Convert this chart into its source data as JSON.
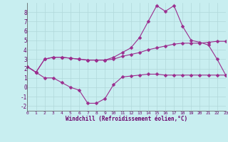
{
  "xlabel": "Windchill (Refroidissement éolien,°C)",
  "background_color": "#c8eef0",
  "grid_color": "#b0d8da",
  "line_color": "#9b2d8e",
  "x_min": 0,
  "x_max": 23,
  "y_min": -2.5,
  "y_max": 9.0,
  "yticks": [
    -2,
    -1,
    0,
    1,
    2,
    3,
    4,
    5,
    6,
    7,
    8
  ],
  "xticks": [
    0,
    1,
    2,
    3,
    4,
    5,
    6,
    7,
    8,
    9,
    10,
    11,
    12,
    13,
    14,
    15,
    16,
    17,
    18,
    19,
    20,
    21,
    22,
    23
  ],
  "curve1_x": [
    0,
    1,
    2,
    3,
    4,
    5,
    6,
    7,
    8,
    9,
    10,
    11,
    12,
    13,
    14,
    15,
    16,
    17,
    18,
    19,
    20,
    21,
    22,
    23
  ],
  "curve1_y": [
    2.2,
    1.6,
    1.0,
    1.0,
    0.5,
    0.0,
    -0.3,
    -1.7,
    -1.7,
    -1.2,
    0.3,
    1.1,
    1.2,
    1.3,
    1.4,
    1.4,
    1.3,
    1.3,
    1.3,
    1.3,
    1.3,
    1.3,
    1.3,
    1.3
  ],
  "curve2_x": [
    0,
    1,
    2,
    3,
    4,
    5,
    6,
    7,
    8,
    9,
    10,
    11,
    12,
    13,
    14,
    15,
    16,
    17,
    18,
    19,
    20,
    21,
    22,
    23
  ],
  "curve2_y": [
    2.2,
    1.6,
    3.0,
    3.2,
    3.2,
    3.1,
    3.0,
    2.9,
    2.9,
    2.9,
    3.0,
    3.3,
    3.5,
    3.7,
    4.0,
    4.2,
    4.4,
    4.6,
    4.7,
    4.7,
    4.7,
    4.8,
    4.9,
    4.9
  ],
  "curve3_x": [
    0,
    1,
    2,
    3,
    4,
    5,
    6,
    7,
    8,
    9,
    10,
    11,
    12,
    13,
    14,
    15,
    16,
    17,
    18,
    19,
    20,
    21,
    22,
    23
  ],
  "curve3_y": [
    2.2,
    1.6,
    3.0,
    3.2,
    3.2,
    3.1,
    3.0,
    2.9,
    2.9,
    2.9,
    3.2,
    3.7,
    4.2,
    5.3,
    7.0,
    8.7,
    8.1,
    8.7,
    6.5,
    5.0,
    4.8,
    4.5,
    3.0,
    1.3
  ]
}
